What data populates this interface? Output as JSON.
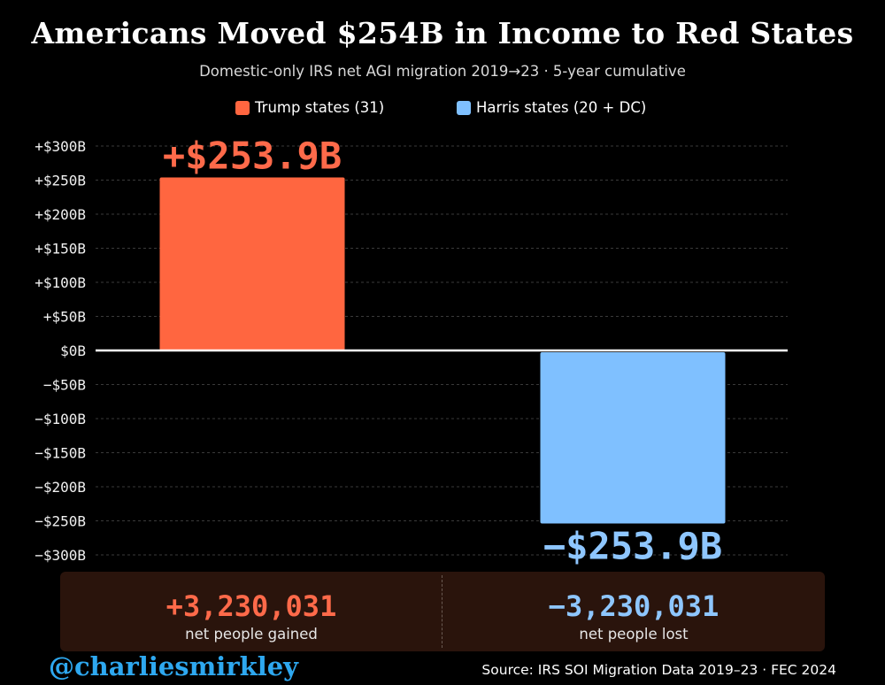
{
  "header": {
    "title": "Americans Moved $254B in Income to Red States",
    "subtitle": "Domestic-only IRS net AGI migration 2019→23 · 5-year cumulative"
  },
  "colors": {
    "trump": "#ff6640",
    "harris": "#7fc0ff",
    "trump_text": "#ff6a4a",
    "harris_text": "#8ec6ff",
    "zero_line": "#ffffff",
    "grid": "#3a3a3a"
  },
  "chart_data": {
    "type": "bar",
    "title": "Americans Moved $254B in Income to Red States",
    "xlabel": "",
    "ylabel": "",
    "ylim": [
      -300,
      300
    ],
    "grid": true,
    "legend_position": "top",
    "yticks": [
      300,
      250,
      200,
      150,
      100,
      50,
      0,
      -50,
      -100,
      -150,
      -200,
      -250,
      -300
    ],
    "ytick_labels": [
      "+$300B",
      "+$250B",
      "+$200B",
      "+$150B",
      "+$100B",
      "+$50B",
      "$0B",
      "−$50B",
      "−$100B",
      "−$150B",
      "−$200B",
      "−$250B",
      "−$300B"
    ],
    "categories": [
      "Trump states (31)",
      "Harris states (20 + DC)"
    ],
    "values": [
      253.9,
      -253.9
    ],
    "value_labels": [
      "+$253.9B",
      "−$253.9B"
    ],
    "series_colors": [
      "#ff6640",
      "#7fc0ff"
    ],
    "label_colors": [
      "#ff6a4a",
      "#8ec6ff"
    ]
  },
  "stats": {
    "left": {
      "value": "+3,230,031",
      "caption": "net people gained"
    },
    "right": {
      "value": "−3,230,031",
      "caption": "net people lost"
    }
  },
  "footer": {
    "handle": "@charliesmirkley",
    "source": "Source: IRS SOI Migration Data 2019–23 · FEC 2024"
  }
}
